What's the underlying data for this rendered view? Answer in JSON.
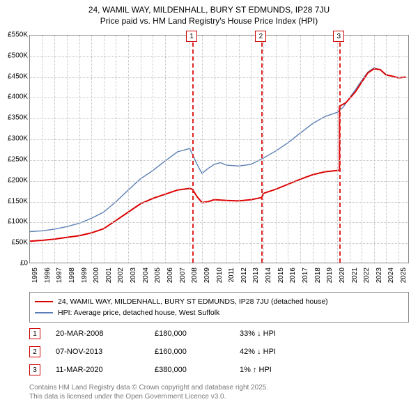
{
  "title": {
    "line1": "24, WAMIL WAY, MILDENHALL, BURY ST EDMUNDS, IP28 7JU",
    "line2": "Price paid vs. HM Land Registry's House Price Index (HPI)"
  },
  "chart": {
    "type": "line",
    "background_color": "#ffffff",
    "grid_color": "#c0c0c0",
    "border_color": "#888888",
    "xlim": [
      1995,
      2025.9
    ],
    "ylim": [
      0,
      550
    ],
    "xticks": [
      1995,
      1996,
      1997,
      1998,
      1999,
      2000,
      2001,
      2002,
      2003,
      2004,
      2005,
      2006,
      2007,
      2008,
      2009,
      2010,
      2011,
      2012,
      2013,
      2014,
      2015,
      2016,
      2017,
      2018,
      2019,
      2020,
      2021,
      2022,
      2023,
      2024,
      2025
    ],
    "yticks": [
      {
        "v": 0,
        "label": "£0"
      },
      {
        "v": 50,
        "label": "£50K"
      },
      {
        "v": 100,
        "label": "£100K"
      },
      {
        "v": 150,
        "label": "£150K"
      },
      {
        "v": 200,
        "label": "£200K"
      },
      {
        "v": 250,
        "label": "£250K"
      },
      {
        "v": 300,
        "label": "£300K"
      },
      {
        "v": 350,
        "label": "£350K"
      },
      {
        "v": 400,
        "label": "£400K"
      },
      {
        "v": 450,
        "label": "£450K"
      },
      {
        "v": 500,
        "label": "£500K"
      },
      {
        "v": 550,
        "label": "£550K"
      }
    ],
    "series": [
      {
        "name": "price_paid",
        "color": "#dd0000",
        "width": 2,
        "points": [
          [
            1995,
            55
          ],
          [
            1996,
            57
          ],
          [
            1997,
            60
          ],
          [
            1998,
            64
          ],
          [
            1999,
            68
          ],
          [
            2000,
            75
          ],
          [
            2001,
            85
          ],
          [
            2002,
            105
          ],
          [
            2003,
            125
          ],
          [
            2004,
            145
          ],
          [
            2005,
            158
          ],
          [
            2006,
            168
          ],
          [
            2007,
            178
          ],
          [
            2008,
            182
          ],
          [
            2008.22,
            180
          ],
          [
            2008.22,
            180
          ],
          [
            2008.6,
            162
          ],
          [
            2009,
            148
          ],
          [
            2009.5,
            150
          ],
          [
            2010,
            155
          ],
          [
            2011,
            153
          ],
          [
            2012,
            152
          ],
          [
            2013,
            155
          ],
          [
            2013.5,
            158
          ],
          [
            2013.85,
            160
          ],
          [
            2013.85,
            160
          ],
          [
            2014,
            170
          ],
          [
            2015,
            180
          ],
          [
            2016,
            192
          ],
          [
            2017,
            204
          ],
          [
            2018,
            215
          ],
          [
            2019,
            222
          ],
          [
            2020,
            225
          ],
          [
            2020.19,
            226
          ],
          [
            2020.19,
            380
          ],
          [
            2020.7,
            388
          ],
          [
            2021,
            398
          ],
          [
            2021.5,
            415
          ],
          [
            2022,
            438
          ],
          [
            2022.5,
            460
          ],
          [
            2023,
            470
          ],
          [
            2023.5,
            468
          ],
          [
            2024,
            455
          ],
          [
            2024.5,
            452
          ],
          [
            2025,
            448
          ],
          [
            2025.6,
            450
          ]
        ]
      },
      {
        "name": "hpi",
        "color": "#5b7fb5",
        "width": 1.4,
        "points": [
          [
            1995,
            78
          ],
          [
            1996,
            80
          ],
          [
            1997,
            84
          ],
          [
            1998,
            90
          ],
          [
            1999,
            98
          ],
          [
            2000,
            110
          ],
          [
            2001,
            125
          ],
          [
            2002,
            150
          ],
          [
            2003,
            178
          ],
          [
            2004,
            205
          ],
          [
            2005,
            225
          ],
          [
            2006,
            248
          ],
          [
            2007,
            270
          ],
          [
            2008,
            278
          ],
          [
            2008.6,
            240
          ],
          [
            2009,
            218
          ],
          [
            2009.5,
            230
          ],
          [
            2010,
            240
          ],
          [
            2010.5,
            244
          ],
          [
            2011,
            238
          ],
          [
            2012,
            236
          ],
          [
            2013,
            240
          ],
          [
            2014,
            255
          ],
          [
            2015,
            272
          ],
          [
            2016,
            292
          ],
          [
            2017,
            315
          ],
          [
            2018,
            338
          ],
          [
            2019,
            355
          ],
          [
            2020,
            365
          ],
          [
            2020.5,
            378
          ],
          [
            2021,
            400
          ],
          [
            2021.5,
            420
          ],
          [
            2022,
            442
          ],
          [
            2022.5,
            462
          ],
          [
            2023,
            472
          ],
          [
            2023.5,
            468
          ],
          [
            2024,
            456
          ],
          [
            2024.5,
            452
          ],
          [
            2025,
            448
          ],
          [
            2025.6,
            450
          ]
        ]
      }
    ],
    "events": [
      {
        "n": "1",
        "x": 2008.22
      },
      {
        "n": "2",
        "x": 2013.85
      },
      {
        "n": "3",
        "x": 2020.19
      }
    ],
    "event_line_color": "#dd2222",
    "event_box_border": "#cc0000"
  },
  "legend": {
    "rows": [
      {
        "color": "#dd0000",
        "label": "24, WAMIL WAY, MILDENHALL, BURY ST EDMUNDS, IP28 7JU (detached house)"
      },
      {
        "color": "#5b7fb5",
        "label": "HPI: Average price, detached house, West Suffolk"
      }
    ]
  },
  "events_table": [
    {
      "n": "1",
      "date": "20-MAR-2008",
      "price": "£180,000",
      "delta": "33% ↓ HPI"
    },
    {
      "n": "2",
      "date": "07-NOV-2013",
      "price": "£160,000",
      "delta": "42% ↓ HPI"
    },
    {
      "n": "3",
      "date": "11-MAR-2020",
      "price": "£380,000",
      "delta": "1% ↑ HPI"
    }
  ],
  "attribution": {
    "line1": "Contains HM Land Registry data © Crown copyright and database right 2025.",
    "line2": "This data is licensed under the Open Government Licence v3.0."
  }
}
